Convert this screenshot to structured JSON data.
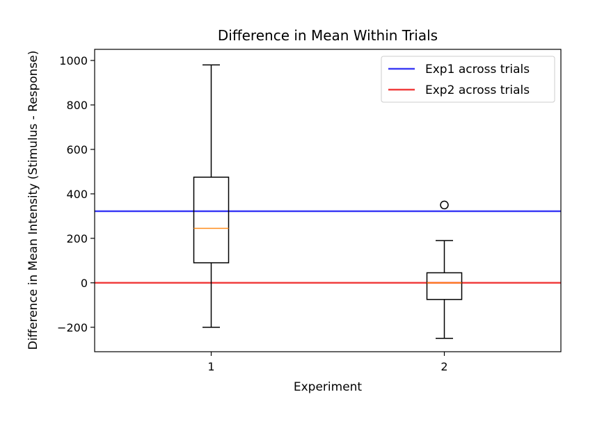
{
  "chart_data": {
    "type": "boxplot",
    "title": "Difference in Mean Within Trials",
    "xlabel": "Experiment",
    "ylabel": "Difference in Mean Intensity (Stimulus - Response)",
    "ylim": [
      -310,
      1050
    ],
    "xlim": [
      0.5,
      2.5
    ],
    "x_ticks": [
      1,
      2
    ],
    "y_ticks": [
      -200,
      0,
      200,
      400,
      600,
      800,
      1000
    ],
    "grid": false,
    "legend_position": "top-right",
    "boxes": [
      {
        "x": 1,
        "whisker_low": -200,
        "q1": 90,
        "median": 245,
        "q3": 475,
        "whisker_high": 980,
        "outliers": []
      },
      {
        "x": 2,
        "whisker_low": -250,
        "q1": -75,
        "median": 0,
        "q3": 45,
        "whisker_high": 190,
        "outliers": [
          350
        ]
      }
    ],
    "reference_lines": [
      {
        "name": "Exp1 across trials",
        "y": 322,
        "color": "#3b3bf5"
      },
      {
        "name": "Exp2 across trials",
        "y": 0,
        "color": "#f03c3c"
      }
    ],
    "box_color": "#000000",
    "median_color": "#ff8c1a"
  }
}
